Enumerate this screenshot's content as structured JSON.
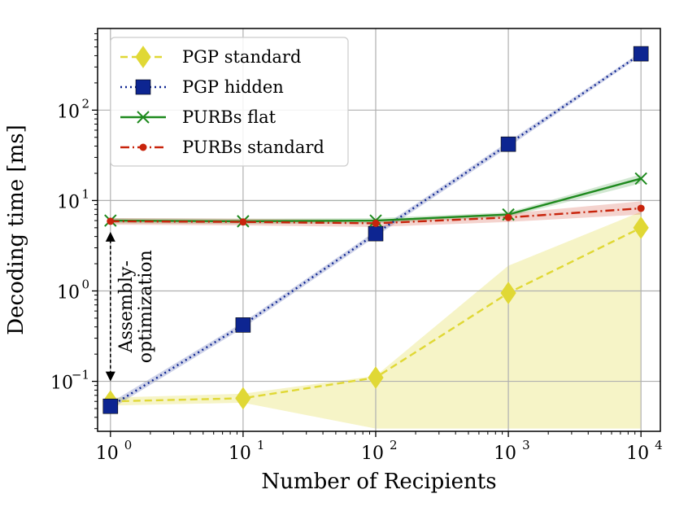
{
  "chart_data": {
    "type": "line",
    "xscale": "log",
    "yscale": "log",
    "xlabel": "Number of Recipients",
    "ylabel": "Decoding time [ms]",
    "xlim": [
      0.8,
      14000
    ],
    "ylim": [
      0.028,
      800
    ],
    "x": [
      1,
      10,
      100,
      1000,
      10000
    ],
    "xticks": [
      {
        "value": 1,
        "base": "10",
        "exp": "0"
      },
      {
        "value": 10,
        "base": "10",
        "exp": "1"
      },
      {
        "value": 100,
        "base": "10",
        "exp": "2"
      },
      {
        "value": 1000,
        "base": "10",
        "exp": "3"
      },
      {
        "value": 10000,
        "base": "10",
        "exp": "4"
      }
    ],
    "yticks": [
      {
        "value": 0.1,
        "base": "10",
        "exp": "−1"
      },
      {
        "value": 1,
        "base": "10",
        "exp": "0"
      },
      {
        "value": 10,
        "base": "10",
        "exp": "1"
      },
      {
        "value": 100,
        "base": "10",
        "exp": "2"
      }
    ],
    "grid": true,
    "legend_position": "top-left",
    "series": [
      {
        "name": "PGP standard",
        "color": "#e0d835",
        "dash": "dashed",
        "marker": "diamond",
        "values": [
          0.06,
          0.065,
          0.11,
          0.95,
          5.0
        ],
        "band_low": [
          0.054,
          0.058,
          0.03,
          0.03,
          0.03
        ],
        "band_high": [
          0.066,
          0.073,
          0.115,
          1.9,
          7.5
        ]
      },
      {
        "name": "PGP hidden",
        "color": "#0d2591",
        "dash": "dotted",
        "marker": "square",
        "values": [
          0.053,
          0.42,
          4.3,
          42,
          420
        ],
        "band_low": [
          0.049,
          0.39,
          4.0,
          39,
          400
        ],
        "band_high": [
          0.058,
          0.45,
          4.6,
          45,
          440
        ]
      },
      {
        "name": "PURBs flat",
        "color": "#1e8a1e",
        "dash": "solid",
        "marker": "x",
        "values": [
          6.0,
          5.9,
          6.0,
          7.0,
          17.5
        ],
        "band_low": [
          5.6,
          5.5,
          5.6,
          6.6,
          15.5
        ],
        "band_high": [
          6.4,
          6.3,
          6.4,
          7.4,
          19.5
        ]
      },
      {
        "name": "PURBs standard",
        "color": "#c8240c",
        "dash": "dashdot",
        "marker": "dot",
        "values": [
          5.9,
          5.8,
          5.6,
          6.5,
          8.2
        ],
        "band_low": [
          5.4,
          5.3,
          5.1,
          5.8,
          7.0
        ],
        "band_high": [
          6.4,
          6.3,
          6.1,
          7.2,
          9.8
        ]
      }
    ],
    "annotation": {
      "lines": [
        "Assembly-",
        "optimization"
      ],
      "x": 1,
      "y_from": 0.1,
      "y_to": 4.5
    }
  }
}
